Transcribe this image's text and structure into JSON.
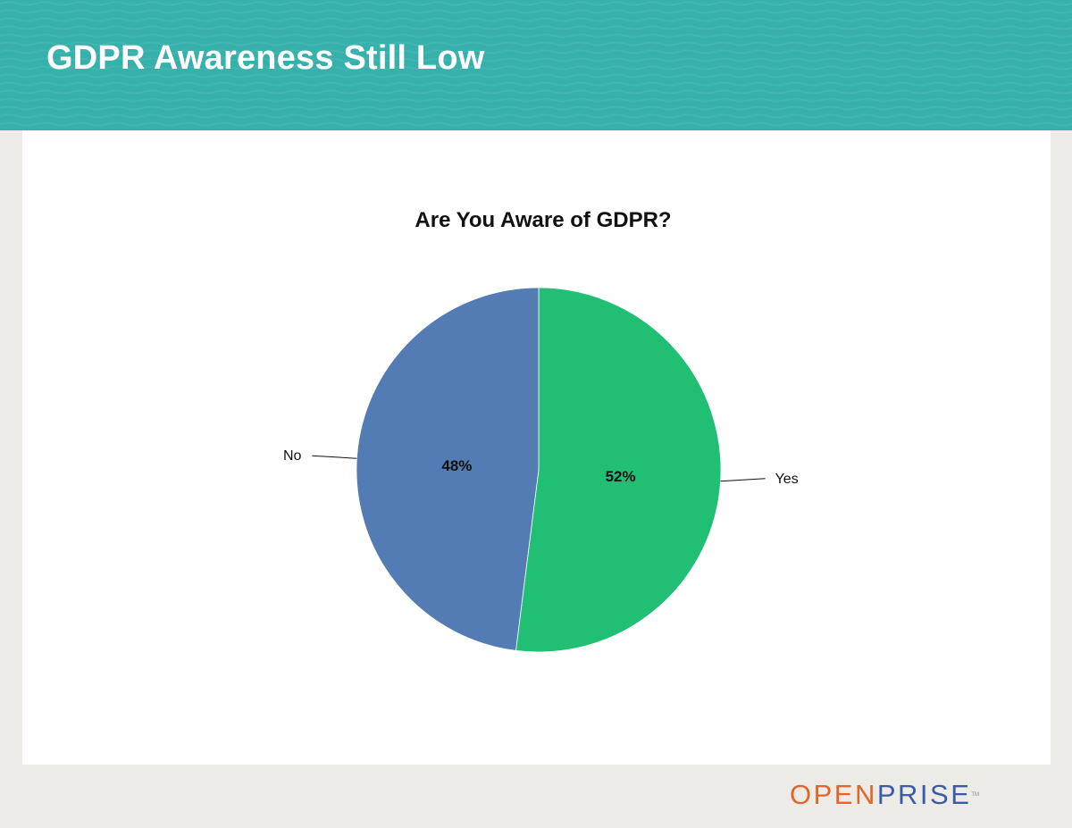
{
  "slide": {
    "title": "GDPR Awareness Still Low"
  },
  "colors": {
    "banner": "#35b0ab",
    "page_background": "#edebe6",
    "content_background": "#ffffff",
    "yes_slice": "#21bf73",
    "no_slice": "#527cb3",
    "logo_open": "#e0662a",
    "logo_prise": "#3a5ba5"
  },
  "chart_data": {
    "type": "pie",
    "title": "Are You Aware of GDPR?",
    "labels": [
      "Yes",
      "No"
    ],
    "values": [
      52,
      48
    ],
    "value_labels": [
      "52%",
      "48%"
    ],
    "colors": [
      "#21bf73",
      "#527cb3"
    ],
    "start_angle": "12 o'clock",
    "direction": "clockwise",
    "legend": "none"
  },
  "logo": {
    "part1": "OPEN",
    "part2": "PRISE",
    "mark": "TM"
  }
}
